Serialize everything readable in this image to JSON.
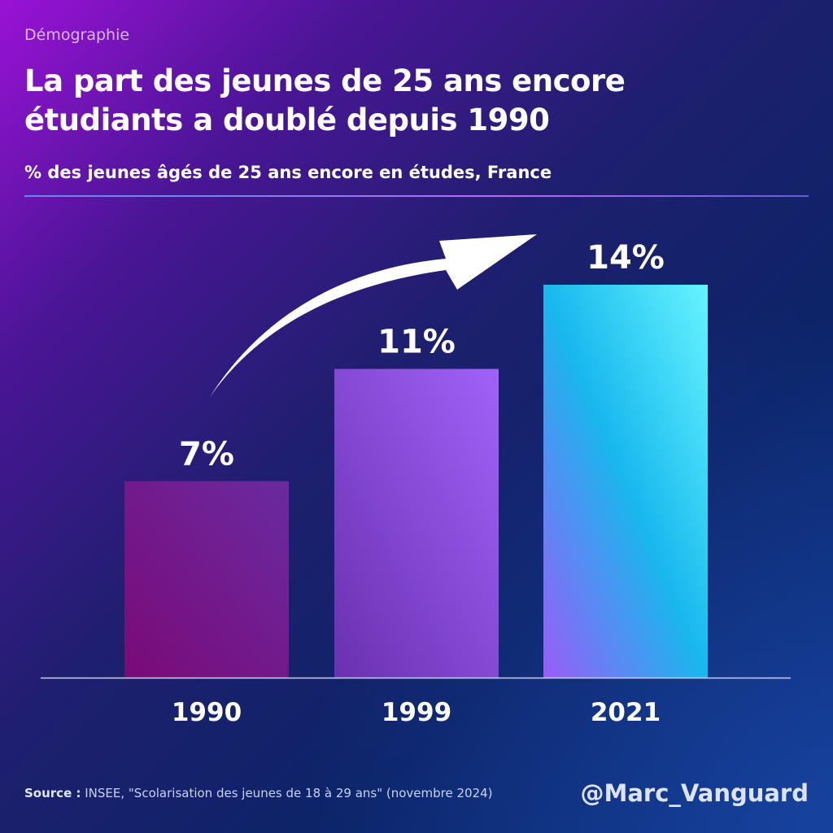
{
  "category": "Démographie",
  "title_line1": "La part des jeunes de 25 ans encore",
  "title_line2": "étudiants a doublé depuis 1990",
  "subtitle": "% des jeunes âgés de 25 ans encore en études, France",
  "source_label": "Source :",
  "source_text": " INSEE, \"Scolarisation des jeunes de 18 à 29 ans\" (novembre 2024)",
  "handle": "@Marc_Vanguard",
  "chart_data": {
    "type": "bar",
    "categories": [
      "1990",
      "1999",
      "2021"
    ],
    "values": [
      7,
      11,
      14
    ],
    "data_labels": [
      "7%",
      "11%",
      "14%"
    ],
    "unit": "%",
    "ylim": [
      0,
      14
    ],
    "grid": false,
    "bar_colors": [
      [
        "#7a0c7a",
        "#6a2aa0"
      ],
      [
        "#7a3ac0",
        "#9a60f5"
      ],
      [
        "#9a60f5",
        "#20c0f0",
        "#60f0ff"
      ]
    ],
    "annotation": "upward-arrow"
  }
}
